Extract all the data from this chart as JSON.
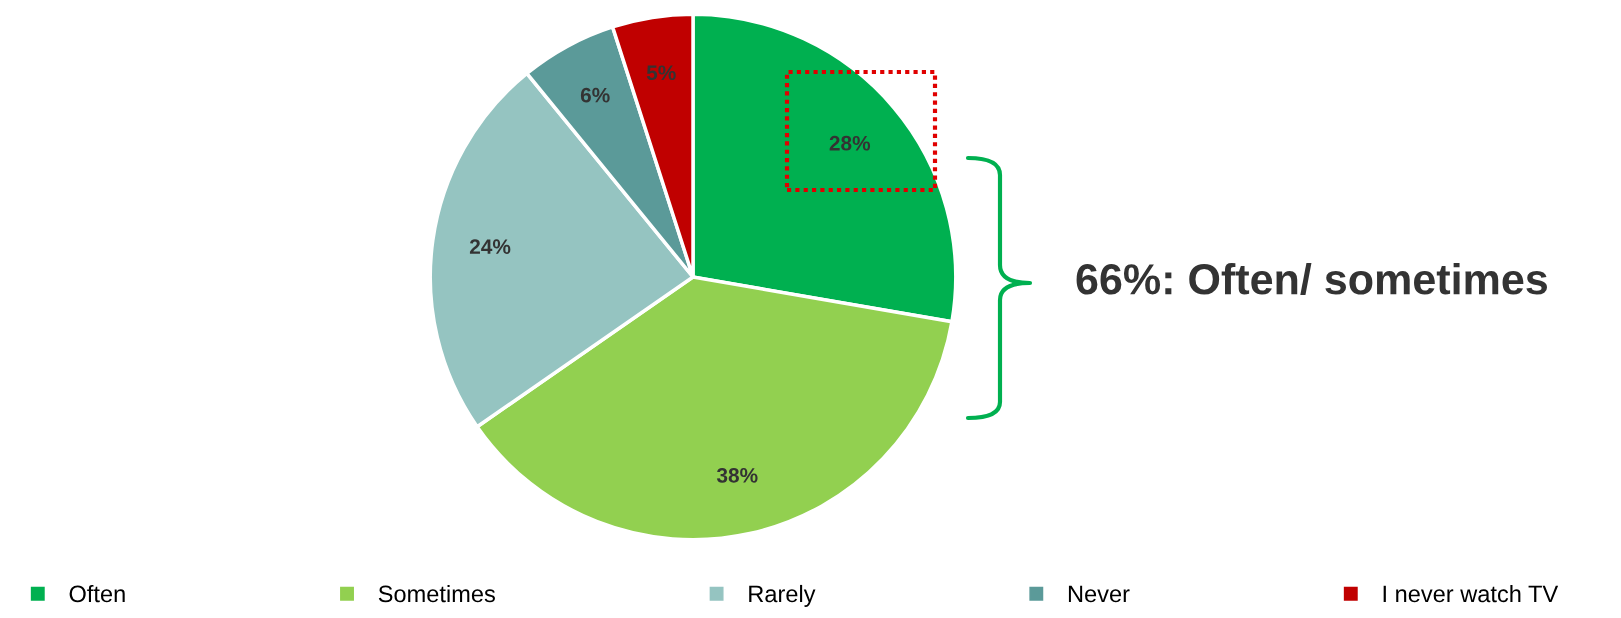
{
  "chart_data": {
    "type": "pie",
    "categories": [
      "Often",
      "Sometimes",
      "Rarely",
      "Never",
      "I never watch TV"
    ],
    "values": [
      28,
      38,
      24,
      6,
      5
    ],
    "colors": [
      "#00b050",
      "#92d050",
      "#95c4c1",
      "#5b9a99",
      "#c00000"
    ],
    "value_labels": [
      "28%",
      "38%",
      "24%",
      "6%",
      "5%"
    ],
    "legend": "bottom",
    "annotations": [
      "66%: Often/ sometimes"
    ]
  }
}
